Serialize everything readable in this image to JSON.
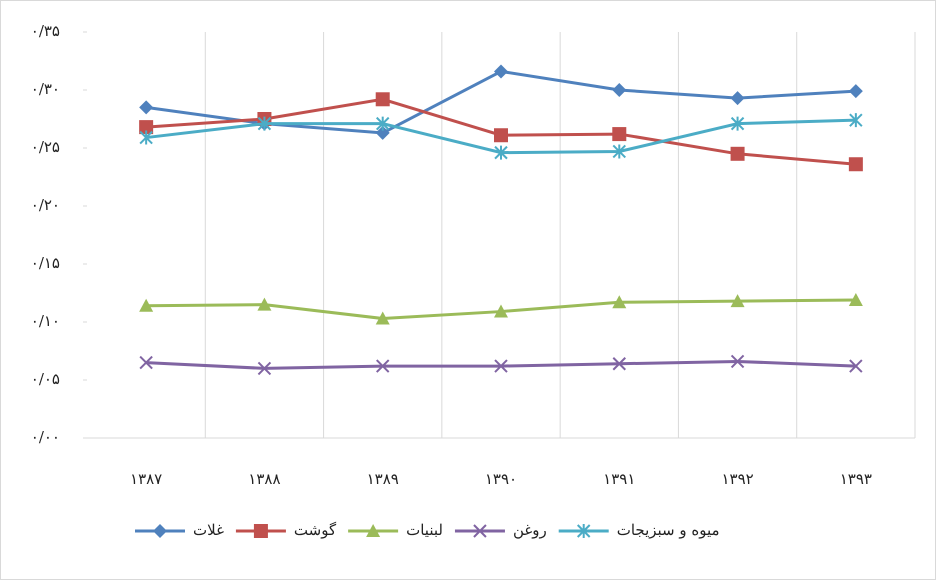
{
  "chart_data": {
    "type": "line",
    "categories": [
      "۱۳۸۷",
      "۱۳۸۸",
      "۱۳۸۹",
      "۱۳۹۰",
      "۱۳۹۱",
      "۱۳۹۲",
      "۱۳۹۳"
    ],
    "series": [
      {
        "name": "غلات",
        "color": "#4f81bd",
        "marker": "diamond",
        "values": [
          0.285,
          0.271,
          0.263,
          0.316,
          0.3,
          0.293,
          0.299
        ]
      },
      {
        "name": "گوشت",
        "color": "#c0504d",
        "marker": "square",
        "values": [
          0.268,
          0.275,
          0.292,
          0.261,
          0.262,
          0.245,
          0.236
        ]
      },
      {
        "name": "لبنیات",
        "color": "#9bbb59",
        "marker": "triangle",
        "values": [
          0.114,
          0.115,
          0.103,
          0.109,
          0.117,
          0.118,
          0.119
        ]
      },
      {
        "name": "روغن",
        "color": "#8064a2",
        "marker": "x",
        "values": [
          0.065,
          0.06,
          0.062,
          0.062,
          0.064,
          0.066,
          0.062
        ]
      },
      {
        "name": "میوه و سبزیجات",
        "color": "#4bacc6",
        "marker": "asterisk",
        "values": [
          0.259,
          0.271,
          0.271,
          0.246,
          0.247,
          0.271,
          0.274
        ]
      }
    ],
    "ylim": [
      0,
      0.35
    ],
    "yticks": [
      {
        "value": 0,
        "label": "۰/۰۰"
      },
      {
        "value": 0.05,
        "label": "۰/۰۵"
      },
      {
        "value": 0.1,
        "label": "۰/۱۰"
      },
      {
        "value": 0.15,
        "label": "۰/۱۵"
      },
      {
        "value": 0.2,
        "label": "۰/۲۰"
      },
      {
        "value": 0.25,
        "label": "۰/۲۵"
      },
      {
        "value": 0.3,
        "label": "۰/۳۰"
      },
      {
        "value": 0.35,
        "label": "۰/۳۵"
      }
    ],
    "grid": "vertical",
    "legend": "bottom"
  }
}
